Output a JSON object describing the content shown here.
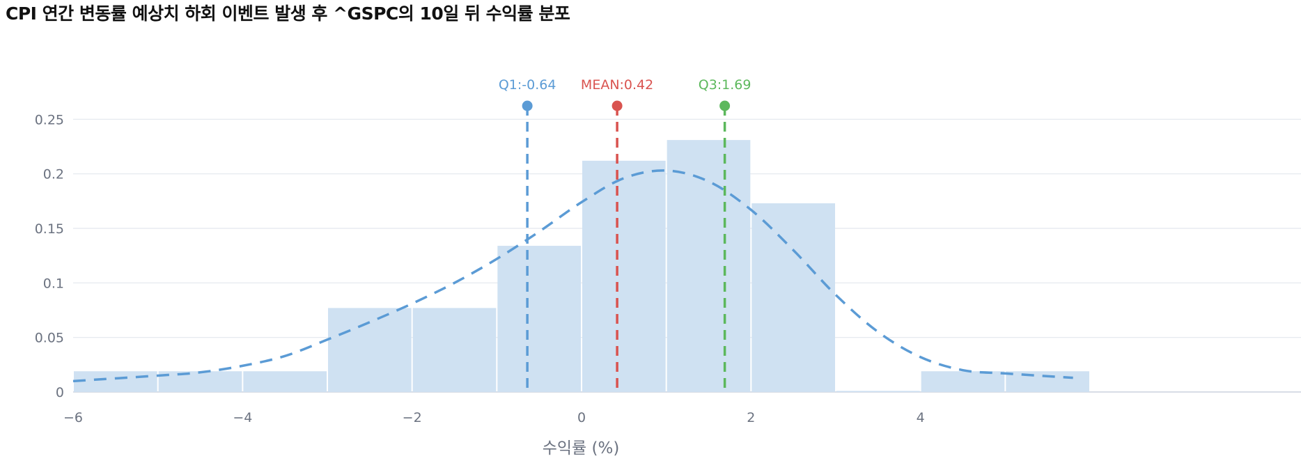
{
  "title": "CPI 연간 변동률 예상치 하회 이벤트 발생 후 ^GSPC의 10일 뒤 수익률 분포",
  "chart_data": {
    "type": "bar",
    "title": "CPI 연간 변동률 예상치 하회 이벤트 발생 후 ^GSPC의 10일 뒤 수익률 분포",
    "xlabel": "수익률 (%)",
    "ylabel": "",
    "xlim": [
      -6,
      5.9
    ],
    "ylim": [
      0,
      0.27
    ],
    "grid": true,
    "x_ticks": [
      "−6",
      "−4",
      "−2",
      "0",
      "2",
      "4"
    ],
    "y_ticks": [
      "0",
      "0.05",
      "0.1",
      "0.15",
      "0.2",
      "0.25"
    ],
    "bins": [
      {
        "from": -6,
        "to": -5,
        "value": 0.019
      },
      {
        "from": -5,
        "to": -4,
        "value": 0.019
      },
      {
        "from": -4,
        "to": -3,
        "value": 0.019
      },
      {
        "from": -3,
        "to": -2,
        "value": 0.077
      },
      {
        "from": -2,
        "to": -1,
        "value": 0.077
      },
      {
        "from": -1,
        "to": 0,
        "value": 0.134
      },
      {
        "from": 0,
        "to": 1,
        "value": 0.212
      },
      {
        "from": 1,
        "to": 2,
        "value": 0.231
      },
      {
        "from": 2,
        "to": 3,
        "value": 0.173
      },
      {
        "from": 3,
        "to": 4,
        "value": 0.001
      },
      {
        "from": 4,
        "to": 5,
        "value": 0.019
      },
      {
        "from": 5,
        "to": 6,
        "value": 0.019
      }
    ],
    "density_curve": {
      "x": [
        -6,
        -5,
        -4.5,
        -4,
        -3.5,
        -3,
        -2.5,
        -2,
        -1.5,
        -1,
        -0.5,
        0,
        0.5,
        1,
        1.5,
        2,
        2.5,
        3,
        3.5,
        4,
        4.5,
        5,
        5.8
      ],
      "y": [
        0.01,
        0.015,
        0.018,
        0.024,
        0.033,
        0.048,
        0.064,
        0.081,
        0.1,
        0.122,
        0.147,
        0.174,
        0.196,
        0.203,
        0.193,
        0.167,
        0.13,
        0.089,
        0.055,
        0.032,
        0.02,
        0.017,
        0.013
      ],
      "color": "#5b9bd5"
    },
    "markers": [
      {
        "label": "Q1:-0.64",
        "x": -0.64,
        "color": "#5b9bd5"
      },
      {
        "label": "MEAN:0.42",
        "x": 0.42,
        "color": "#d9534f"
      },
      {
        "label": "Q3:1.69",
        "x": 1.69,
        "color": "#5cb85c"
      }
    ],
    "bar_color": "#cfe1f2"
  }
}
